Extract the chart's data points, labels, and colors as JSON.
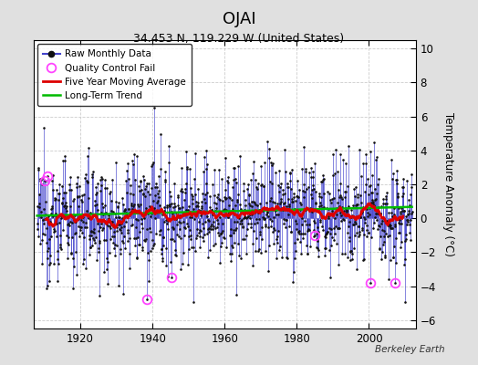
{
  "title": "OJAI",
  "subtitle": "34.453 N, 119.229 W (United States)",
  "ylabel": "Temperature Anomaly (°C)",
  "credit": "Berkeley Earth",
  "year_start": 1908,
  "year_end": 2012,
  "ylim": [
    -6.5,
    10.5
  ],
  "yticks": [
    -6,
    -4,
    -2,
    0,
    2,
    4,
    6,
    8,
    10
  ],
  "xlim": [
    1907,
    2013
  ],
  "xticks": [
    1920,
    1940,
    1960,
    1980,
    2000
  ],
  "background_color": "#e0e0e0",
  "plot_bg_color": "#ffffff",
  "line_color": "#4444cc",
  "line_alpha": 0.75,
  "dot_color": "#111111",
  "ma_color": "#dd0000",
  "trend_color": "#00bb00",
  "qc_color": "#ff44ff",
  "seed": 12345,
  "noise_std": 1.6,
  "trend_slope": 0.005,
  "ma_window": 60,
  "qc_years": [
    1910.2,
    1910.9,
    1938.5,
    1945.3,
    1985.1,
    2000.5,
    2007.2
  ],
  "qc_values": [
    2.2,
    2.5,
    -4.8,
    -3.5,
    -1.0,
    -3.8,
    -3.8
  ]
}
